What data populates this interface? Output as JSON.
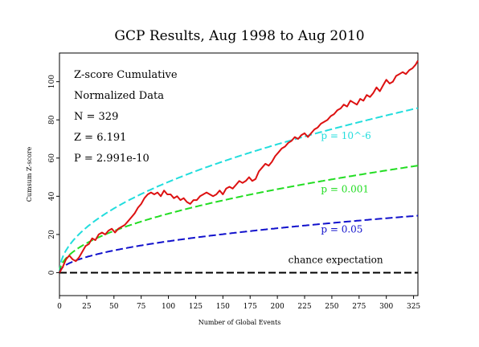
{
  "chart_data": {
    "type": "line",
    "title": "GCP Results, Aug 1998 to Aug 2010",
    "xlabel": "Number of Global Events",
    "ylabel": "Cumsum Z-score",
    "xlim": [
      0,
      329
    ],
    "ylim": [
      -12,
      115
    ],
    "x_ticks": [
      0,
      25,
      50,
      75,
      100,
      125,
      150,
      175,
      200,
      225,
      250,
      275,
      300,
      325
    ],
    "y_ticks": [
      0,
      20,
      40,
      60,
      80,
      100
    ],
    "grid": false,
    "stats": {
      "line1": "Z-score Cumulative",
      "line2": "Normalized Data",
      "line3": "N = 329",
      "line4": "Z = 6.191",
      "line5": "P = 2.991e-10"
    },
    "reference_curves": [
      {
        "label": "p = 10^-6",
        "color": "#22dddd",
        "coef": 4.753,
        "label_x": 240,
        "label_y": 70
      },
      {
        "label": "p = 0.001",
        "color": "#22dd22",
        "coef": 3.09,
        "label_x": 240,
        "label_y": 42
      },
      {
        "label": "p = 0.05",
        "color": "#1111cc",
        "coef": 1.645,
        "label_x": 240,
        "label_y": 21
      },
      {
        "label": "chance expectation",
        "color": "#000000",
        "coef": 0,
        "label_x": 210,
        "label_y": 5
      }
    ],
    "series": [
      {
        "color": "#dd1111",
        "x": [
          0,
          3,
          6,
          9,
          12,
          15,
          18,
          21,
          24,
          27,
          30,
          33,
          36,
          39,
          42,
          45,
          48,
          51,
          54,
          57,
          60,
          63,
          66,
          69,
          72,
          75,
          78,
          81,
          84,
          87,
          90,
          93,
          96,
          99,
          102,
          105,
          108,
          111,
          114,
          117,
          120,
          123,
          126,
          129,
          132,
          135,
          138,
          141,
          144,
          147,
          150,
          153,
          156,
          159,
          162,
          165,
          168,
          171,
          174,
          177,
          180,
          183,
          186,
          189,
          192,
          195,
          198,
          201,
          204,
          207,
          210,
          213,
          216,
          219,
          222,
          225,
          228,
          231,
          234,
          237,
          240,
          243,
          246,
          249,
          252,
          255,
          258,
          261,
          264,
          267,
          270,
          273,
          276,
          279,
          282,
          285,
          288,
          291,
          294,
          297,
          300,
          303,
          306,
          309,
          312,
          315,
          318,
          321,
          324,
          327,
          329
        ],
        "y": [
          0,
          3,
          7,
          9,
          7,
          6,
          8,
          11,
          14,
          15,
          18,
          17,
          20,
          21,
          20,
          22,
          23,
          21,
          23,
          24,
          25,
          27,
          29,
          31,
          34,
          36,
          39,
          41,
          42,
          41,
          42,
          40,
          43,
          41,
          41,
          39,
          40,
          38,
          39,
          37,
          36,
          38,
          38,
          40,
          41,
          42,
          41,
          40,
          41,
          43,
          41,
          44,
          45,
          44,
          46,
          48,
          47,
          48,
          50,
          48,
          49,
          53,
          55,
          57,
          56,
          58,
          61,
          63,
          65,
          66,
          68,
          69,
          71,
          70,
          72,
          73,
          71,
          73,
          75,
          76,
          78,
          79,
          80,
          82,
          83,
          85,
          86,
          88,
          87,
          90,
          89,
          88,
          91,
          90,
          93,
          92,
          94,
          97,
          95,
          98,
          101,
          99,
          100,
          103,
          104,
          105,
          104,
          106,
          107,
          109,
          111
        ]
      }
    ]
  }
}
